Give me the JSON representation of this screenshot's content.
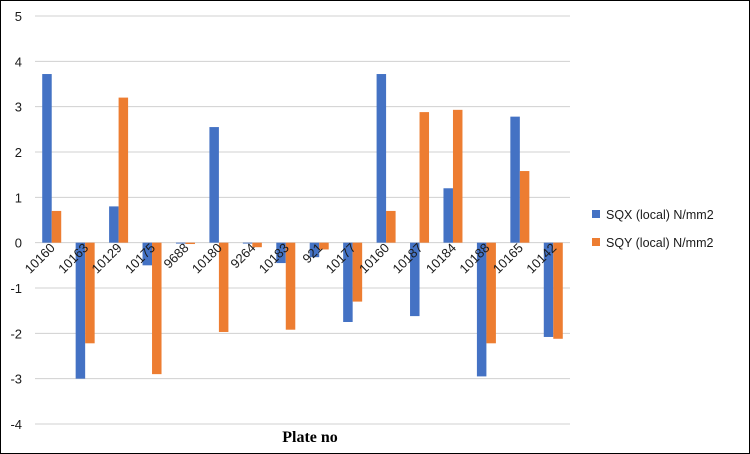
{
  "chart_data": {
    "type": "bar",
    "title": "",
    "xlabel": "Plate no",
    "ylabel": "",
    "ylim": [
      -4,
      5
    ],
    "yticks": [
      -4,
      -3,
      -2,
      -1,
      0,
      1,
      2,
      3,
      4,
      5
    ],
    "grid": true,
    "legend_position": "right",
    "categories": [
      "10160",
      "10163",
      "10129",
      "10175",
      "9688",
      "10180",
      "9264",
      "10183",
      "921",
      "10177",
      "10160",
      "10187",
      "10184",
      "10188",
      "10165",
      "10142"
    ],
    "series": [
      {
        "name": "SQX (local) N/mm2",
        "color": "#4472C4",
        "values": [
          3.72,
          -3.0,
          0.8,
          -0.5,
          -0.02,
          2.55,
          -0.02,
          -0.45,
          -0.32,
          -1.75,
          3.72,
          -1.62,
          1.2,
          -2.95,
          2.78,
          -2.08
        ]
      },
      {
        "name": "SQY (local) N/mm2",
        "color": "#ED7D31",
        "values": [
          0.7,
          -2.22,
          3.2,
          -2.9,
          -0.03,
          -1.97,
          -0.1,
          -1.92,
          -0.15,
          -1.3,
          0.7,
          2.88,
          2.93,
          -2.22,
          1.58,
          -2.12
        ]
      }
    ]
  }
}
